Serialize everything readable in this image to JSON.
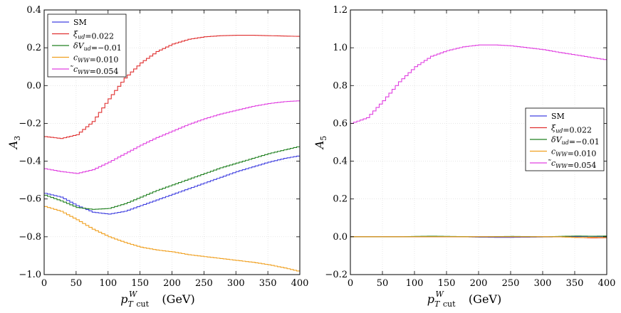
{
  "chart_data": [
    {
      "type": "line",
      "ylabel": "A_3",
      "xlabel": "p_T cut^W (GeV)",
      "xlim": [
        0,
        400
      ],
      "ylim": [
        -1.0,
        0.4
      ],
      "xticks": [
        0,
        50,
        100,
        150,
        200,
        250,
        300,
        350,
        400
      ],
      "xtick_labels": [
        "0",
        "50",
        "100",
        "150",
        "200",
        "250",
        "300",
        "350",
        "400"
      ],
      "yticks": [
        -1.0,
        -0.8,
        -0.6,
        -0.4,
        -0.2,
        0.0,
        0.2,
        0.4
      ],
      "ytick_labels": [
        "−1.0",
        "−0.8",
        "−0.6",
        "−0.4",
        "−0.2",
        "0.0",
        "0.2",
        "0.4"
      ],
      "grid": true,
      "step": true,
      "legend_position": "top-left",
      "series": [
        {
          "name": "SM",
          "color": "#4040e0",
          "x": [
            0,
            25,
            50,
            75,
            100,
            125,
            150,
            175,
            200,
            225,
            250,
            275,
            300,
            325,
            350,
            375,
            400
          ],
          "y": [
            -0.57,
            -0.59,
            -0.635,
            -0.67,
            -0.68,
            -0.665,
            -0.635,
            -0.605,
            -0.575,
            -0.545,
            -0.515,
            -0.485,
            -0.455,
            -0.43,
            -0.405,
            -0.385,
            -0.37
          ]
        },
        {
          "name": "ξ_ud=0.022",
          "color": "#e03030",
          "x": [
            0,
            25,
            50,
            75,
            100,
            125,
            150,
            175,
            200,
            225,
            250,
            275,
            300,
            325,
            350,
            375,
            400
          ],
          "y": [
            -0.27,
            -0.28,
            -0.26,
            -0.19,
            -0.07,
            0.04,
            0.12,
            0.18,
            0.22,
            0.245,
            0.258,
            0.264,
            0.266,
            0.266,
            0.264,
            0.262,
            0.26
          ]
        },
        {
          "name": "δV_ud=−0.01",
          "color": "#208020",
          "x": [
            0,
            25,
            50,
            75,
            100,
            125,
            150,
            175,
            200,
            225,
            250,
            275,
            300,
            325,
            350,
            375,
            400
          ],
          "y": [
            -0.58,
            -0.61,
            -0.645,
            -0.655,
            -0.65,
            -0.625,
            -0.59,
            -0.555,
            -0.525,
            -0.495,
            -0.465,
            -0.435,
            -0.41,
            -0.385,
            -0.36,
            -0.34,
            -0.32
          ]
        },
        {
          "name": "c_WW=0.010",
          "color": "#f0a020",
          "x": [
            0,
            25,
            50,
            75,
            100,
            125,
            150,
            175,
            200,
            225,
            250,
            275,
            300,
            325,
            350,
            375,
            400
          ],
          "y": [
            -0.64,
            -0.665,
            -0.71,
            -0.76,
            -0.8,
            -0.83,
            -0.855,
            -0.87,
            -0.88,
            -0.895,
            -0.905,
            -0.915,
            -0.925,
            -0.935,
            -0.948,
            -0.965,
            -0.985
          ]
        },
        {
          "name": "̃c_WW=0.054",
          "color": "#e040e0",
          "x": [
            0,
            25,
            50,
            75,
            100,
            125,
            150,
            175,
            200,
            225,
            250,
            275,
            300,
            325,
            350,
            375,
            400
          ],
          "y": [
            -0.44,
            -0.455,
            -0.465,
            -0.445,
            -0.405,
            -0.36,
            -0.315,
            -0.275,
            -0.24,
            -0.205,
            -0.175,
            -0.15,
            -0.13,
            -0.11,
            -0.095,
            -0.085,
            -0.08
          ]
        }
      ]
    },
    {
      "type": "line",
      "ylabel": "A_5",
      "xlabel": "p_T cut^W (GeV)",
      "xlim": [
        0,
        400
      ],
      "ylim": [
        -0.2,
        1.2
      ],
      "xticks": [
        0,
        50,
        100,
        150,
        200,
        250,
        300,
        350,
        400
      ],
      "xtick_labels": [
        "0",
        "50",
        "100",
        "150",
        "200",
        "250",
        "300",
        "350",
        "400"
      ],
      "yticks": [
        -0.2,
        0.0,
        0.2,
        0.4,
        0.6,
        0.8,
        1.0,
        1.2
      ],
      "ytick_labels": [
        "−0.2",
        "0.0",
        "0.2",
        "0.4",
        "0.6",
        "0.8",
        "1.0",
        "1.2"
      ],
      "grid": true,
      "step": true,
      "legend_position": "center-right",
      "series": [
        {
          "name": "SM",
          "color": "#4040e0",
          "x": [
            0,
            25,
            50,
            75,
            100,
            125,
            150,
            175,
            200,
            225,
            250,
            275,
            300,
            325,
            350,
            375,
            400
          ],
          "y": [
            0.0,
            0.0,
            0.0,
            0.0,
            0.0,
            0.0,
            0.0,
            0.0,
            -0.002,
            -0.003,
            -0.003,
            -0.002,
            -0.001,
            0.0,
            0.001,
            0.002,
            0.0
          ]
        },
        {
          "name": "ξ_ud=0.022",
          "color": "#e03030",
          "x": [
            0,
            25,
            50,
            75,
            100,
            125,
            150,
            175,
            200,
            225,
            250,
            275,
            300,
            325,
            350,
            375,
            400
          ],
          "y": [
            0.0,
            0.0,
            0.0,
            0.0,
            0.0,
            0.0,
            0.0,
            0.0,
            0.0,
            0.0,
            0.0,
            0.0,
            0.0,
            0.0,
            -0.003,
            -0.006,
            -0.005
          ]
        },
        {
          "name": "δV_ud=−0.01",
          "color": "#208020",
          "x": [
            0,
            25,
            50,
            75,
            100,
            125,
            150,
            175,
            200,
            225,
            250,
            275,
            300,
            325,
            350,
            375,
            400
          ],
          "y": [
            0.0,
            0.0,
            0.0,
            0.0,
            0.002,
            0.003,
            0.002,
            0.001,
            0.0,
            0.001,
            0.002,
            0.001,
            0.0,
            0.002,
            0.004,
            0.003,
            0.004
          ]
        },
        {
          "name": "c_WW=0.010",
          "color": "#f0a020",
          "x": [
            0,
            25,
            50,
            75,
            100,
            125,
            150,
            175,
            200,
            225,
            250,
            275,
            300,
            325,
            350,
            375,
            400
          ],
          "y": [
            0.0,
            0.0,
            0.0,
            0.0,
            0.0,
            0.0,
            0.0,
            0.0,
            0.0,
            0.0,
            0.0,
            0.0,
            0.0,
            0.0,
            -0.004,
            -0.003,
            -0.004
          ]
        },
        {
          "name": "̃c_WW=0.054",
          "color": "#e040e0",
          "x": [
            0,
            25,
            50,
            75,
            100,
            125,
            150,
            175,
            200,
            225,
            250,
            275,
            300,
            325,
            350,
            375,
            400
          ],
          "y": [
            0.6,
            0.63,
            0.72,
            0.82,
            0.9,
            0.955,
            0.985,
            1.005,
            1.015,
            1.015,
            1.01,
            1.0,
            0.99,
            0.975,
            0.962,
            0.948,
            0.935
          ]
        }
      ]
    }
  ]
}
